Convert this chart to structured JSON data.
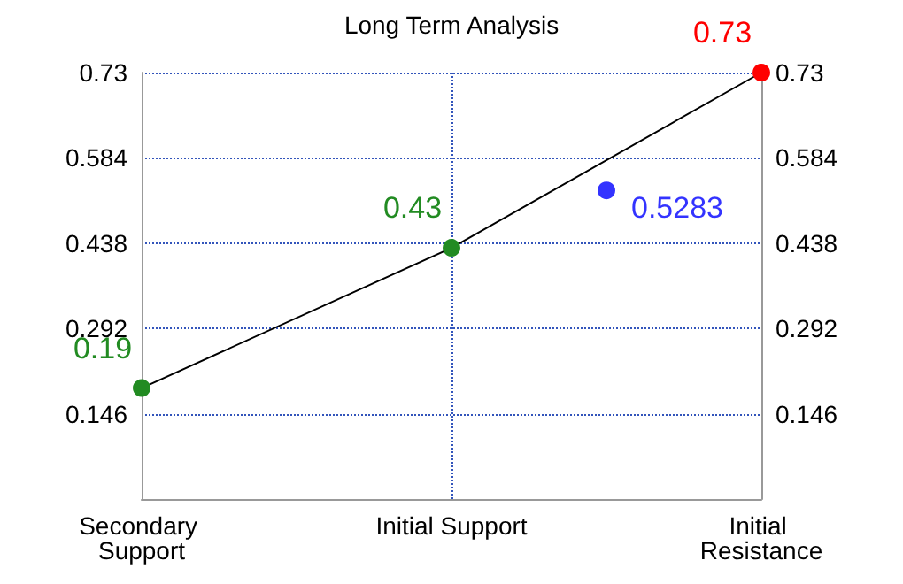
{
  "chart_data": {
    "type": "line",
    "title": "Long Term Analysis",
    "categories": [
      "Secondary Support",
      null,
      "Initial Support",
      null,
      "Initial Resistance"
    ],
    "series": [
      {
        "color": "#000000",
        "colors": [
          "#228b22",
          null,
          "#228b22",
          null,
          "#ff0000"
        ],
        "values": [
          0.19,
          null,
          0.43,
          null,
          0.73
        ]
      },
      {
        "type": "scatter",
        "color": "#0000ff",
        "values": [
          null,
          null,
          null,
          0.5283,
          null
        ]
      }
    ],
    "ylim": [
      0,
      0.73
    ],
    "yticks": [
      0.146,
      0.292,
      0.438,
      0.584,
      0.73
    ],
    "y2lim": [
      0,
      0.73
    ],
    "y2ticks": [
      0.146,
      0.292,
      0.438,
      0.584,
      0.73
    ],
    "grid": true,
    "marker": "circle",
    "data_labels": true
  }
}
